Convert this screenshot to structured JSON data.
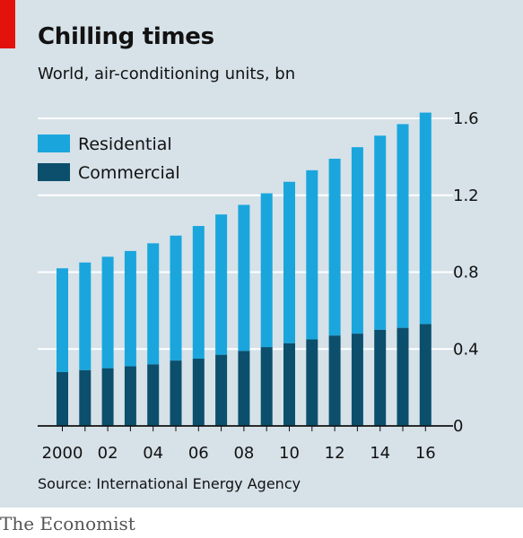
{
  "header": {
    "title": "Chilling times",
    "subtitle": "World, air-conditioning units, bn"
  },
  "footer": {
    "source": "Source: International Energy Agency",
    "brand": "The Economist"
  },
  "colors": {
    "residential": "#1aa6dd",
    "commercial": "#0b4f6c",
    "background": "#d6e1e8",
    "gridline": "#ffffff",
    "axis": "#121212",
    "accent": "#e3120b"
  },
  "chart_data": {
    "type": "bar",
    "stacked": true,
    "title": "Chilling times",
    "subtitle": "World, air-conditioning units, bn",
    "categories": [
      "2000",
      "2001",
      "2002",
      "2003",
      "2004",
      "2005",
      "2006",
      "2007",
      "2008",
      "2009",
      "2010",
      "2011",
      "2012",
      "2013",
      "2014",
      "2015",
      "2016"
    ],
    "x_tick_labels": [
      "2000",
      "",
      "02",
      "",
      "04",
      "",
      "06",
      "",
      "08",
      "",
      "10",
      "",
      "12",
      "",
      "14",
      "",
      "16"
    ],
    "series": [
      {
        "name": "Commercial",
        "values": [
          0.28,
          0.29,
          0.3,
          0.31,
          0.32,
          0.34,
          0.35,
          0.37,
          0.39,
          0.41,
          0.43,
          0.45,
          0.47,
          0.48,
          0.5,
          0.51,
          0.53
        ]
      },
      {
        "name": "Residential",
        "values": [
          0.54,
          0.56,
          0.58,
          0.6,
          0.63,
          0.65,
          0.69,
          0.73,
          0.76,
          0.8,
          0.84,
          0.88,
          0.92,
          0.97,
          1.01,
          1.06,
          1.1
        ]
      }
    ],
    "ylim": [
      0,
      1.6
    ],
    "y_ticks": [
      "0",
      "0.4",
      "0.8",
      "1.2",
      "1.6"
    ],
    "y_axis_side": "right",
    "grid": true,
    "legend_placement": "top-left",
    "legend": [
      "Residential",
      "Commercial"
    ]
  }
}
